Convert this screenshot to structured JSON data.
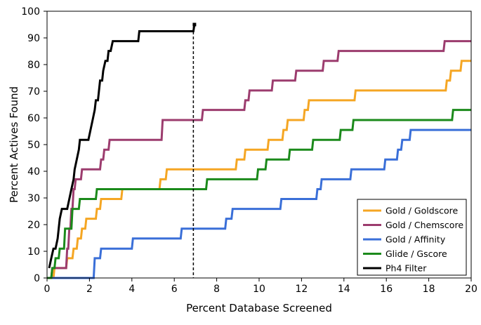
{
  "chart_data": {
    "type": "line",
    "title": "",
    "xlabel": "Percent Database Screened",
    "ylabel": "Percent Actives Found",
    "xlim": [
      0,
      20
    ],
    "ylim": [
      0,
      100
    ],
    "xticks": [
      0,
      2,
      4,
      6,
      8,
      10,
      12,
      14,
      16,
      18,
      20
    ],
    "yticks": [
      0,
      10,
      20,
      30,
      40,
      50,
      60,
      70,
      80,
      90,
      100
    ],
    "xtick_labels": [
      "0",
      "2",
      "4",
      "6",
      "8",
      "10",
      "12",
      "14",
      "16",
      "18",
      "20"
    ],
    "ytick_labels": [
      "0",
      "10",
      "20",
      "30",
      "40",
      "50",
      "60",
      "70",
      "80",
      "90",
      "100"
    ],
    "grid": false,
    "legend_position": "bottom-right",
    "cutoff_line_x": 6.9,
    "series": [
      {
        "name": "Gold / Goldscore",
        "color": "#f5a623",
        "points": [
          [
            0,
            0
          ],
          [
            0.3,
            0
          ],
          [
            0.35,
            3.7
          ],
          [
            0.9,
            3.7
          ],
          [
            0.95,
            7.4
          ],
          [
            1.2,
            7.4
          ],
          [
            1.25,
            11
          ],
          [
            1.4,
            11
          ],
          [
            1.45,
            14.8
          ],
          [
            1.6,
            14.8
          ],
          [
            1.65,
            18.5
          ],
          [
            1.8,
            18.5
          ],
          [
            1.85,
            22.2
          ],
          [
            2.3,
            22.2
          ],
          [
            2.35,
            25.9
          ],
          [
            2.5,
            25.9
          ],
          [
            2.55,
            29.6
          ],
          [
            3.5,
            29.6
          ],
          [
            3.55,
            33.3
          ],
          [
            5.3,
            33.3
          ],
          [
            5.35,
            37
          ],
          [
            5.6,
            37
          ],
          [
            5.65,
            40.7
          ],
          [
            8.9,
            40.7
          ],
          [
            8.95,
            44.4
          ],
          [
            9.3,
            44.4
          ],
          [
            9.35,
            48.1
          ],
          [
            10.4,
            48.1
          ],
          [
            10.45,
            51.8
          ],
          [
            11.1,
            51.8
          ],
          [
            11.15,
            55.5
          ],
          [
            11.3,
            55.5
          ],
          [
            11.35,
            59.2
          ],
          [
            12.1,
            59.2
          ],
          [
            12.15,
            63
          ],
          [
            12.3,
            63
          ],
          [
            12.35,
            66.6
          ],
          [
            14.5,
            66.6
          ],
          [
            14.55,
            70.3
          ],
          [
            18.8,
            70.3
          ],
          [
            18.85,
            74
          ],
          [
            19.0,
            74
          ],
          [
            19.05,
            77.7
          ],
          [
            19.5,
            77.7
          ],
          [
            19.55,
            81.4
          ],
          [
            20,
            81.4
          ]
        ]
      },
      {
        "name": "Gold / Chemscore",
        "color": "#9c3c6e",
        "points": [
          [
            0,
            0
          ],
          [
            0.2,
            0
          ],
          [
            0.25,
            3.7
          ],
          [
            0.9,
            3.7
          ],
          [
            0.95,
            11
          ],
          [
            1.0,
            11
          ],
          [
            1.05,
            18.5
          ],
          [
            1.1,
            18.5
          ],
          [
            1.15,
            25.9
          ],
          [
            1.2,
            25.9
          ],
          [
            1.25,
            33.3
          ],
          [
            1.3,
            33.3
          ],
          [
            1.35,
            37
          ],
          [
            1.6,
            37
          ],
          [
            1.65,
            40.7
          ],
          [
            2.5,
            40.7
          ],
          [
            2.55,
            44.4
          ],
          [
            2.65,
            44.4
          ],
          [
            2.7,
            48.1
          ],
          [
            2.9,
            48.1
          ],
          [
            2.95,
            51.8
          ],
          [
            5.4,
            51.8
          ],
          [
            5.45,
            59.2
          ],
          [
            7.3,
            59.2
          ],
          [
            7.35,
            63
          ],
          [
            9.3,
            63
          ],
          [
            9.35,
            66.6
          ],
          [
            9.5,
            66.6
          ],
          [
            9.55,
            70.3
          ],
          [
            10.6,
            70.3
          ],
          [
            10.65,
            74
          ],
          [
            11.7,
            74
          ],
          [
            11.75,
            77.7
          ],
          [
            13.0,
            77.7
          ],
          [
            13.05,
            81.4
          ],
          [
            13.7,
            81.4
          ],
          [
            13.75,
            85.1
          ],
          [
            18.7,
            85.1
          ],
          [
            18.75,
            88.8
          ],
          [
            20,
            88.8
          ]
        ]
      },
      {
        "name": "Gold / Affinity",
        "color": "#3a6fd8",
        "points": [
          [
            0,
            0
          ],
          [
            2.2,
            0
          ],
          [
            2.25,
            7.4
          ],
          [
            2.5,
            7.4
          ],
          [
            2.55,
            11
          ],
          [
            4.0,
            11
          ],
          [
            4.05,
            14.8
          ],
          [
            6.3,
            14.8
          ],
          [
            6.35,
            18.5
          ],
          [
            8.4,
            18.5
          ],
          [
            8.45,
            22.2
          ],
          [
            8.7,
            22.2
          ],
          [
            8.75,
            25.9
          ],
          [
            11.0,
            25.9
          ],
          [
            11.05,
            29.6
          ],
          [
            12.7,
            29.6
          ],
          [
            12.75,
            33.3
          ],
          [
            12.9,
            33.3
          ],
          [
            12.95,
            37
          ],
          [
            14.3,
            37
          ],
          [
            14.35,
            40.7
          ],
          [
            15.9,
            40.7
          ],
          [
            15.95,
            44.4
          ],
          [
            16.5,
            44.4
          ],
          [
            16.55,
            48.1
          ],
          [
            16.7,
            48.1
          ],
          [
            16.75,
            51.8
          ],
          [
            17.1,
            51.8
          ],
          [
            17.15,
            55.5
          ],
          [
            20,
            55.5
          ]
        ]
      },
      {
        "name": "Glide / Gscore",
        "color": "#1b8a1b",
        "points": [
          [
            0,
            0
          ],
          [
            0.2,
            0
          ],
          [
            0.25,
            3.7
          ],
          [
            0.35,
            3.7
          ],
          [
            0.4,
            7.4
          ],
          [
            0.55,
            7.4
          ],
          [
            0.6,
            11
          ],
          [
            0.8,
            11
          ],
          [
            0.85,
            18.5
          ],
          [
            1.15,
            18.5
          ],
          [
            1.2,
            25.9
          ],
          [
            1.5,
            25.9
          ],
          [
            1.55,
            29.6
          ],
          [
            2.3,
            29.6
          ],
          [
            2.35,
            33.3
          ],
          [
            7.5,
            33.3
          ],
          [
            7.55,
            37
          ],
          [
            9.9,
            37
          ],
          [
            9.95,
            40.7
          ],
          [
            10.3,
            40.7
          ],
          [
            10.35,
            44.4
          ],
          [
            11.4,
            44.4
          ],
          [
            11.45,
            48.1
          ],
          [
            12.5,
            48.1
          ],
          [
            12.55,
            51.8
          ],
          [
            13.8,
            51.8
          ],
          [
            13.85,
            55.5
          ],
          [
            14.4,
            55.5
          ],
          [
            14.45,
            59.2
          ],
          [
            19.1,
            59.2
          ],
          [
            19.15,
            63
          ],
          [
            20,
            63
          ]
        ]
      },
      {
        "name": "Ph4 Filter",
        "color": "#000000",
        "points": [
          [
            0.1,
            3.7
          ],
          [
            0.2,
            7.4
          ],
          [
            0.3,
            11
          ],
          [
            0.4,
            11
          ],
          [
            0.5,
            14.8
          ],
          [
            0.55,
            18.5
          ],
          [
            0.6,
            22.2
          ],
          [
            0.7,
            25.9
          ],
          [
            0.95,
            25.9
          ],
          [
            1.05,
            29.6
          ],
          [
            1.15,
            33.3
          ],
          [
            1.25,
            37
          ],
          [
            1.3,
            40.7
          ],
          [
            1.4,
            44.4
          ],
          [
            1.5,
            48.1
          ],
          [
            1.55,
            51.8
          ],
          [
            1.95,
            51.8
          ],
          [
            2.05,
            55.5
          ],
          [
            2.15,
            59.2
          ],
          [
            2.25,
            63
          ],
          [
            2.3,
            66.6
          ],
          [
            2.4,
            66.6
          ],
          [
            2.45,
            70.3
          ],
          [
            2.5,
            74
          ],
          [
            2.6,
            74
          ],
          [
            2.65,
            77.7
          ],
          [
            2.75,
            81.4
          ],
          [
            2.85,
            81.4
          ],
          [
            2.9,
            85.1
          ],
          [
            3.0,
            85.1
          ],
          [
            3.1,
            88.8
          ],
          [
            4.3,
            88.8
          ],
          [
            4.35,
            92.5
          ],
          [
            6.9,
            92.5
          ],
          [
            6.95,
            95
          ]
        ]
      }
    ]
  }
}
